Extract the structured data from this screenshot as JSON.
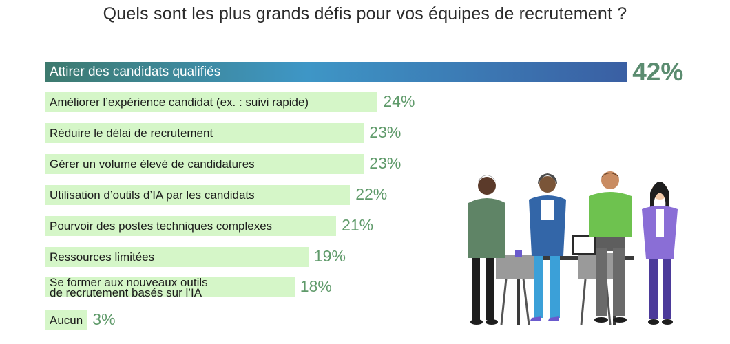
{
  "chart_data": {
    "type": "bar",
    "orientation": "horizontal",
    "title": "Quels sont les plus grands défis pour vos équipes de recrutement ?",
    "xlabel": "",
    "ylabel": "",
    "unit": "%",
    "grid": false,
    "categories": [
      "Attirer des candidats qualifiés",
      "Améliorer l’expérience candidat (ex. : suivi rapide)",
      "Réduire le délai de recrutement",
      "Gérer un volume élevé de candidatures",
      "Utilisation d’outils d’IA par les candidats",
      "Pourvoir des postes techniques complexes",
      "Ressources limitées",
      "Se former aux nouveaux outils\nde recrutement basés sur l’IA",
      "Aucun"
    ],
    "values": [
      42,
      24,
      23,
      23,
      22,
      21,
      19,
      18,
      3
    ],
    "value_labels": [
      "42%",
      "24%",
      "23%",
      "23%",
      "22%",
      "21%",
      "19%",
      "18%",
      "3%"
    ],
    "colors": {
      "top_bar_gradient": [
        "#3d7a6e",
        "#3e96c6",
        "#3a5fa3"
      ],
      "bar": "#d5f6c8",
      "value_text": "#5f9a6a",
      "top_value_text": "#5b8c70"
    }
  },
  "illustration": {
    "icon": "office-team-illustration"
  }
}
